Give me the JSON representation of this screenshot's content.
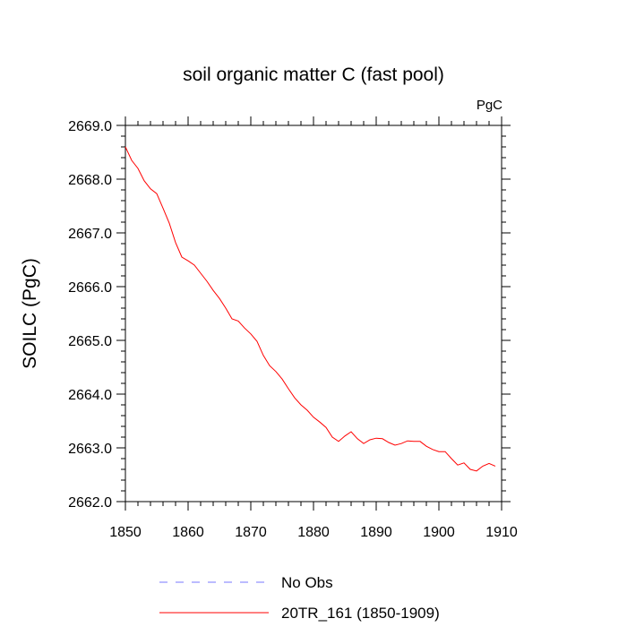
{
  "chart_data": {
    "type": "line",
    "title": "soil organic matter C (fast pool)",
    "units": "PgC",
    "ylabel": "SOILC  (PgC)",
    "xlabel": "",
    "xlim": [
      1850,
      1910
    ],
    "ylim": [
      2662.0,
      2669.0
    ],
    "x_ticks": [
      1850,
      1860,
      1870,
      1880,
      1890,
      1900,
      1910
    ],
    "x_tick_labels": [
      "1850",
      "1860",
      "1870",
      "1880",
      "1890",
      "1900",
      "1910"
    ],
    "y_ticks": [
      2662.0,
      2663.0,
      2664.0,
      2665.0,
      2666.0,
      2667.0,
      2668.0,
      2669.0
    ],
    "y_tick_labels": [
      "2662.0",
      "2663.0",
      "2664.0",
      "2665.0",
      "2666.0",
      "2667.0",
      "2668.0",
      "2669.0"
    ],
    "grid": false,
    "legend_position": "bottom",
    "series": [
      {
        "name": "No Obs",
        "color": "#7777ff",
        "dashed": true,
        "values": []
      },
      {
        "name": "20TR_161 (1850-1909)",
        "color": "#ff0000",
        "dashed": false,
        "x": [
          1850,
          1851,
          1852,
          1853,
          1854,
          1855,
          1856,
          1857,
          1858,
          1859,
          1860,
          1861,
          1862,
          1863,
          1864,
          1865,
          1866,
          1867,
          1868,
          1869,
          1870,
          1871,
          1872,
          1873,
          1874,
          1875,
          1876,
          1877,
          1878,
          1879,
          1880,
          1881,
          1882,
          1883,
          1884,
          1885,
          1886,
          1887,
          1888,
          1889,
          1890,
          1891,
          1892,
          1893,
          1894,
          1895,
          1896,
          1897,
          1898,
          1899,
          1900,
          1901,
          1902,
          1903,
          1904,
          1905,
          1906,
          1907,
          1908,
          1909
        ],
        "values": [
          2668.6,
          2668.35,
          2668.2,
          2667.97,
          2667.82,
          2667.73,
          2667.46,
          2667.18,
          2666.82,
          2666.55,
          2666.48,
          2666.4,
          2666.25,
          2666.1,
          2665.93,
          2665.78,
          2665.6,
          2665.4,
          2665.36,
          2665.23,
          2665.12,
          2664.98,
          2664.72,
          2664.53,
          2664.42,
          2664.28,
          2664.1,
          2663.93,
          2663.8,
          2663.7,
          2663.57,
          2663.48,
          2663.38,
          2663.2,
          2663.12,
          2663.22,
          2663.3,
          2663.17,
          2663.08,
          2663.15,
          2663.18,
          2663.17,
          2663.1,
          2663.05,
          2663.08,
          2663.13,
          2663.12,
          2663.12,
          2663.03,
          2662.97,
          2662.93,
          2662.93,
          2662.8,
          2662.68,
          2662.72,
          2662.6,
          2662.57,
          2662.66,
          2662.71,
          2662.66
        ]
      }
    ]
  }
}
